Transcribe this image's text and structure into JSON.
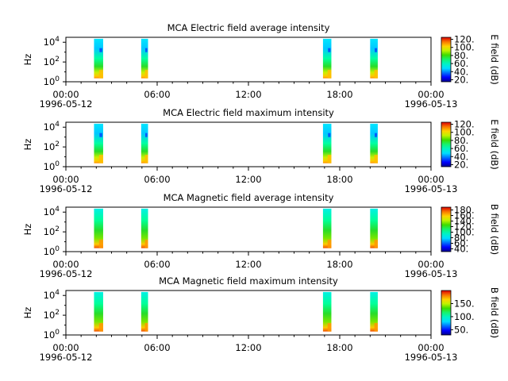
{
  "chart_data": [
    {
      "type": "heatmap",
      "title": "MCA  Electric field average intensity",
      "ylabel": "Hz",
      "y_ticks": [
        "10^0",
        "10^2",
        "10^4"
      ],
      "ylim_log10": [
        0,
        4.5
      ],
      "x_ticks": [
        "00:00",
        "06:00",
        "12:00",
        "18:00",
        "00:00"
      ],
      "x_start_label": "1996-05-12",
      "x_end_label": "1996-05-13",
      "xlim_hours": [
        0,
        24
      ],
      "data_intervals_hours": [
        [
          1.85,
          2.45
        ],
        [
          4.95,
          5.4
        ],
        [
          16.9,
          17.45
        ],
        [
          20.0,
          20.5
        ]
      ],
      "colorbar": {
        "label": "E field (dB)",
        "min": 15,
        "max": 125,
        "ticks": [
          20,
          40,
          60,
          80,
          100,
          120
        ]
      }
    },
    {
      "type": "heatmap",
      "title": "MCA  Electric field maximum intensity",
      "ylabel": "Hz",
      "y_ticks": [
        "10^0",
        "10^2",
        "10^4"
      ],
      "ylim_log10": [
        0,
        4.5
      ],
      "x_ticks": [
        "00:00",
        "06:00",
        "12:00",
        "18:00",
        "00:00"
      ],
      "x_start_label": "1996-05-12",
      "x_end_label": "1996-05-13",
      "xlim_hours": [
        0,
        24
      ],
      "data_intervals_hours": [
        [
          1.85,
          2.45
        ],
        [
          4.95,
          5.4
        ],
        [
          16.9,
          17.45
        ],
        [
          20.0,
          20.5
        ]
      ],
      "colorbar": {
        "label": "E field (dB)",
        "min": 15,
        "max": 125,
        "ticks": [
          20,
          40,
          60,
          80,
          100,
          120
        ]
      }
    },
    {
      "type": "heatmap",
      "title": "MCA  Magnetic field average intensity",
      "ylabel": "Hz",
      "y_ticks": [
        "10^0",
        "10^2",
        "10^4"
      ],
      "ylim_log10": [
        0,
        4.5
      ],
      "x_ticks": [
        "00:00",
        "06:00",
        "12:00",
        "18:00",
        "00:00"
      ],
      "x_start_label": "1996-05-12",
      "x_end_label": "1996-05-13",
      "xlim_hours": [
        0,
        24
      ],
      "data_intervals_hours": [
        [
          1.85,
          2.45
        ],
        [
          4.95,
          5.4
        ],
        [
          16.9,
          17.45
        ],
        [
          20.0,
          20.5
        ]
      ],
      "colorbar": {
        "label": "B field (dB)",
        "min": 30,
        "max": 190,
        "ticks": [
          40,
          60,
          80,
          100,
          120,
          140,
          160,
          180
        ]
      }
    },
    {
      "type": "heatmap",
      "title": "MCA  Magnetic field maximum intensity",
      "ylabel": "Hz",
      "y_ticks": [
        "10^0",
        "10^2",
        "10^4"
      ],
      "ylim_log10": [
        0,
        4.5
      ],
      "x_ticks": [
        "00:00",
        "06:00",
        "12:00",
        "18:00",
        "00:00"
      ],
      "x_start_label": "1996-05-12",
      "x_end_label": "1996-05-13",
      "xlim_hours": [
        0,
        24
      ],
      "data_intervals_hours": [
        [
          1.85,
          2.45
        ],
        [
          4.95,
          5.4
        ],
        [
          16.9,
          17.45
        ],
        [
          20.0,
          20.5
        ]
      ],
      "colorbar": {
        "label": "B field (dB)",
        "min": 30,
        "max": 200,
        "ticks": [
          50,
          100,
          150
        ]
      }
    }
  ]
}
